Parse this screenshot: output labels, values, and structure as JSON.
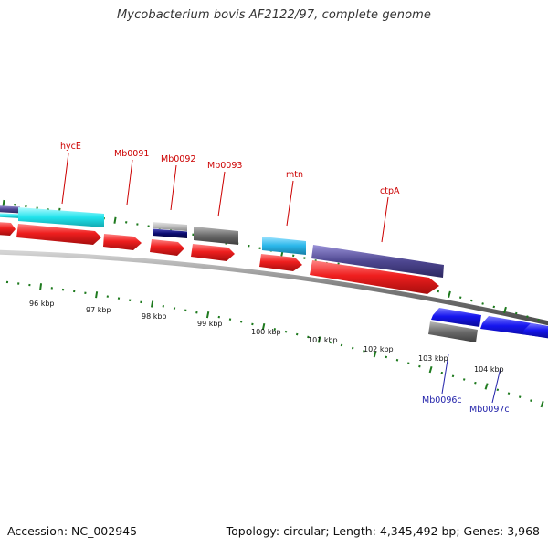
{
  "title": "Mycobacterium bovis AF2122/97, complete genome",
  "footer": {
    "accession": "Accession: NC_002945",
    "summary": "Topology: circular; Length: 4,345,492 bp; Genes: 3,968"
  },
  "colors": {
    "background": "#ffffff",
    "backbone": "#7a7a7a",
    "tick": "#1e7a1e",
    "forward_cds": "#ef1f1f",
    "reverse_cds": "#1515ee",
    "label_forward": "#cc0000",
    "label_reverse": "#2222aa",
    "cyan": "#22e3ec",
    "sky": "#2bb7ea",
    "slate": "#4e4790",
    "dark_grey": "#6a6a6a",
    "light_grey": "#bcbcbc",
    "navy": "#0b0b70"
  },
  "scale_labels": [
    "96 kbp",
    "97 kbp",
    "98 kbp",
    "99 kbp",
    "100 kbp",
    "101 kbp",
    "102 kbp",
    "103 kbp",
    "104 kbp"
  ],
  "gene_labels": [
    "hycE",
    "Mb0091",
    "Mb0092",
    "Mb0093",
    "mtn",
    "ctpA",
    "Mb0096c",
    "Mb0097c"
  ]
}
